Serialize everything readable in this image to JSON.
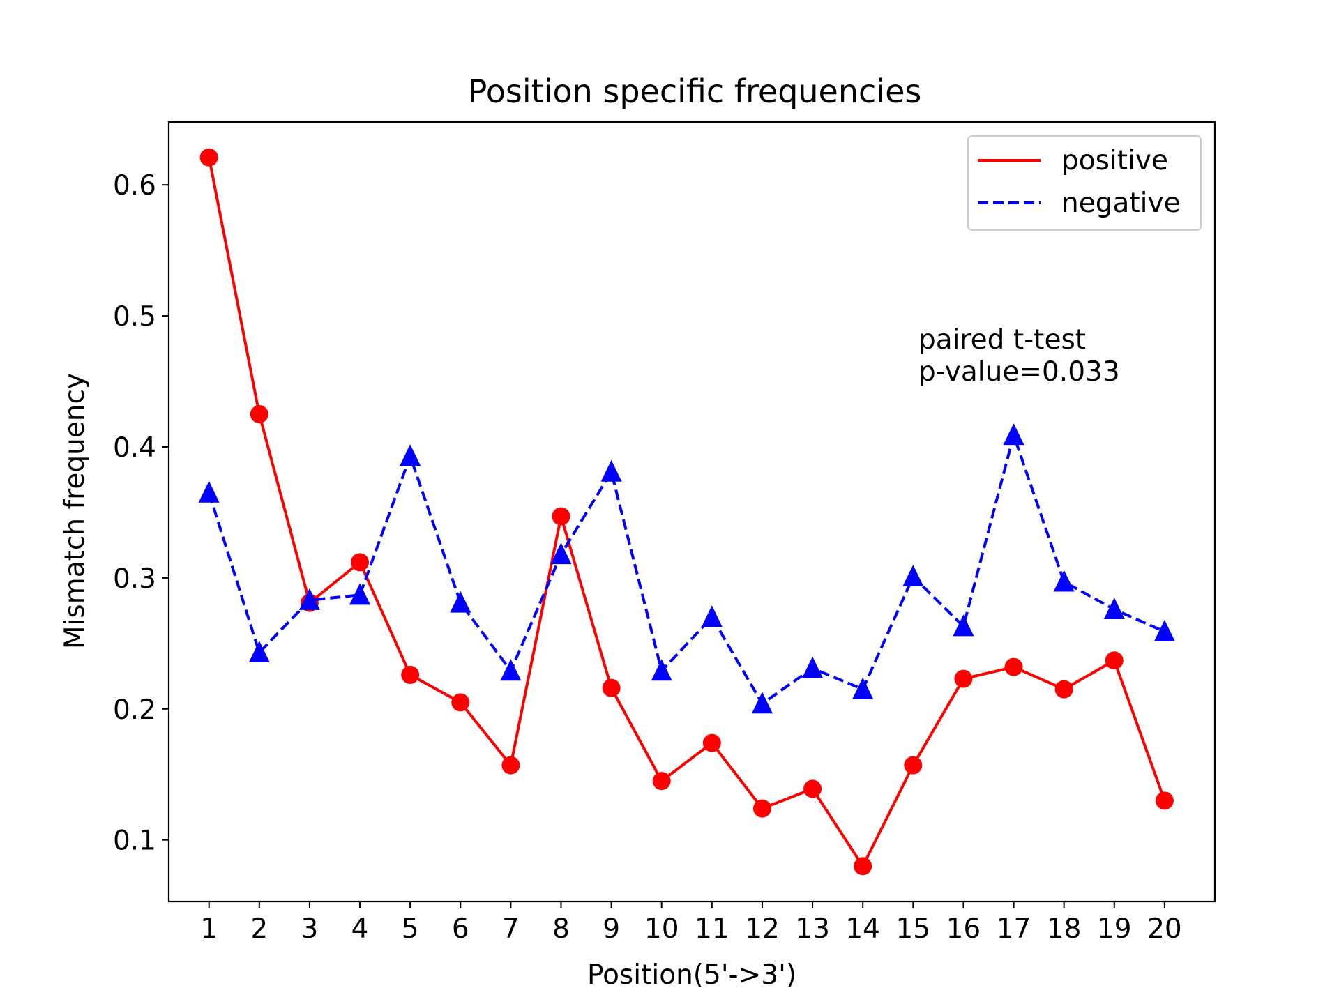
{
  "chart_data": {
    "type": "line",
    "title": "Position specific frequencies",
    "xlabel": "Position(5'->3')",
    "ylabel": "Mismatch frequency",
    "x": [
      1,
      2,
      3,
      4,
      5,
      6,
      7,
      8,
      9,
      10,
      11,
      12,
      13,
      14,
      15,
      16,
      17,
      18,
      19,
      20
    ],
    "xlim": [
      0.2,
      21.0
    ],
    "ylim": [
      0.053,
      0.648
    ],
    "yticks": [
      0.1,
      0.2,
      0.3,
      0.4,
      0.5,
      0.6
    ],
    "ytick_labels": [
      "0.1",
      "0.2",
      "0.3",
      "0.4",
      "0.5",
      "0.6"
    ],
    "xtick_labels": [
      "1",
      "2",
      "3",
      "4",
      "5",
      "6",
      "7",
      "8",
      "9",
      "10",
      "11",
      "12",
      "13",
      "14",
      "15",
      "16",
      "17",
      "18",
      "19",
      "20"
    ],
    "grid": false,
    "legend_position": "upper-right",
    "series": [
      {
        "name": "positive",
        "color": "#ff0000",
        "line_style": "solid",
        "marker": "circle",
        "values": [
          0.621,
          0.425,
          0.281,
          0.312,
          0.226,
          0.205,
          0.157,
          0.347,
          0.216,
          0.145,
          0.174,
          0.124,
          0.139,
          0.08,
          0.157,
          0.223,
          0.232,
          0.215,
          0.237,
          0.13
        ]
      },
      {
        "name": "negative",
        "color": "#0000ff",
        "line_style": "dashed",
        "marker": "triangle",
        "values": [
          0.365,
          0.243,
          0.283,
          0.287,
          0.393,
          0.281,
          0.229,
          0.318,
          0.381,
          0.229,
          0.27,
          0.204,
          0.231,
          0.215,
          0.301,
          0.263,
          0.409,
          0.297,
          0.276,
          0.259
        ]
      }
    ],
    "annotation": {
      "line1": "paired t-test",
      "line2": "p-value=0.033"
    }
  }
}
